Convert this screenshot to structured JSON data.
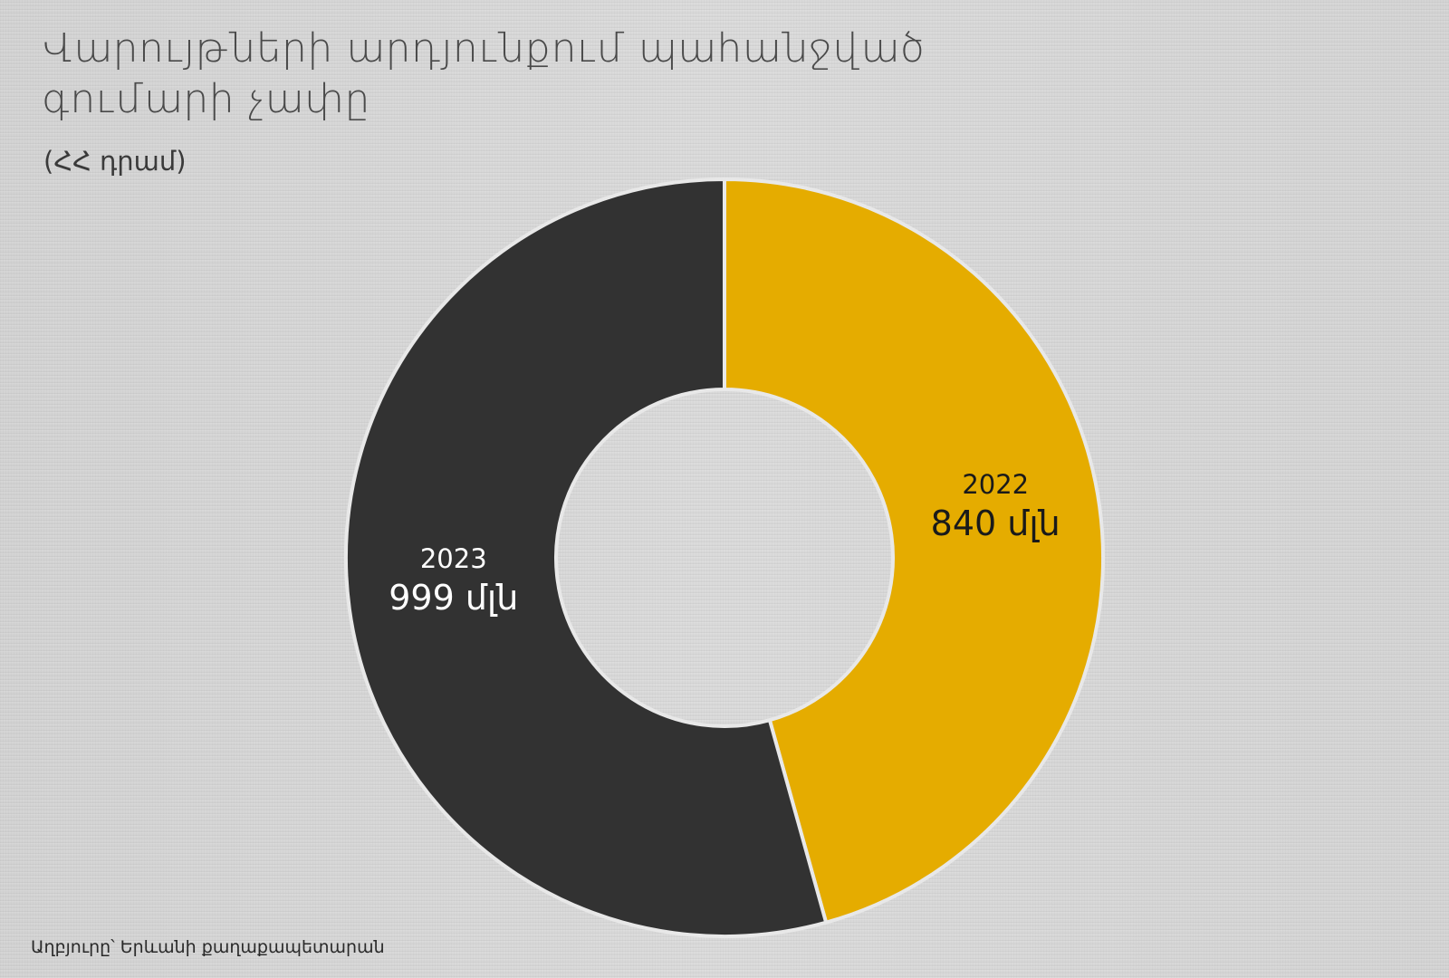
{
  "title": "Վարույթների արդյունքում պահանջված գումարի չափը",
  "subtitle": "(ՀՀ դրամ)",
  "source": "Աղբյուրը՝ Երևանի քաղաքապետարան",
  "colors": {
    "series_2023": "#323232",
    "series_2022": "#e5ac00",
    "label_on_dark": "#ffffff",
    "label_on_light": "#1a1a1a",
    "separator": "#e8e8e8"
  },
  "chart_data": {
    "type": "donut",
    "title": "Վարույթների արդյունքում պահանջված գումարի չափը",
    "subtitle": "(ՀՀ դրամ)",
    "unit": "մլն",
    "slices": [
      {
        "label": "2022",
        "value": 840,
        "value_text": "840 մլն",
        "color": "#e5ac00"
      },
      {
        "label": "2023",
        "value": 999,
        "value_text": "999 մլն",
        "color": "#323232"
      }
    ],
    "start": "12 o'clock",
    "direction": "clockwise",
    "legend": "none"
  }
}
